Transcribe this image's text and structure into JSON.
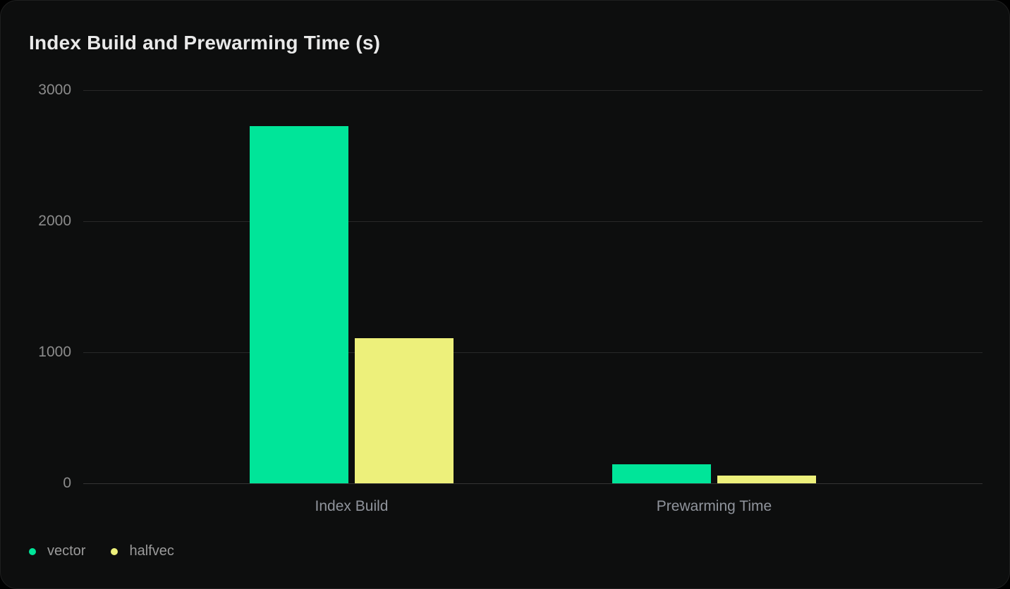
{
  "card": {
    "title": "Index Build and Prewarming Time (s)"
  },
  "colors": {
    "page_background": "#000000",
    "card_background": "#0d0e0e",
    "card_border": "#1e1f1f",
    "gridline": "#282828",
    "zero_line": "#343434",
    "title_text": "#e9e9e9",
    "tick_label": "#8c8c8c",
    "category_label": "#90949c",
    "legend_label": "#9b9b9b",
    "vector": "#00e599",
    "halfvec": "#edf07b"
  },
  "chart_data": {
    "type": "bar",
    "title": "Index Build and Prewarming Time (s)",
    "categories": [
      "Index Build",
      "Prewarming Time"
    ],
    "series": [
      {
        "name": "vector",
        "color": "#00e599",
        "values": [
          2725,
          145
        ]
      },
      {
        "name": "halfvec",
        "color": "#edf07b",
        "values": [
          1110,
          60
        ]
      }
    ],
    "xlabel": "",
    "ylabel": "",
    "unit": "s",
    "ylim": [
      0,
      3000
    ],
    "yticks": [
      0,
      1000,
      2000,
      3000
    ],
    "grid": "horizontal",
    "legend_position": "bottom-left",
    "legend": [
      {
        "label": "vector",
        "color": "#00e599"
      },
      {
        "label": "halfvec",
        "color": "#edf07b"
      }
    ]
  }
}
